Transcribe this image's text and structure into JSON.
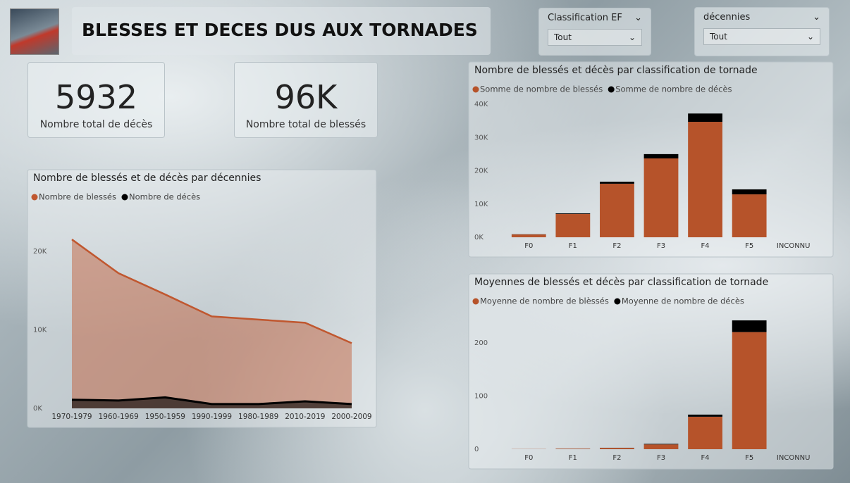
{
  "header": {
    "title": "BLESSES ET DECES DUS AUX TORNADES"
  },
  "slicers": [
    {
      "label": "Classification EF",
      "value": "Tout"
    },
    {
      "label": "décennies",
      "value": "Tout"
    }
  ],
  "cards": [
    {
      "value": 5932,
      "label": "Nombre total de décès"
    },
    {
      "value": 96000,
      "value_label": "96K",
      "label": "Nombre total de blessés"
    }
  ],
  "chart_data": [
    {
      "type": "area",
      "title": "Nombre de blessés et de décès par décennies",
      "categories": [
        "1970-1979",
        "1960-1969",
        "1950-1959",
        "1990-1999",
        "1980-1989",
        "2010-2019",
        "2000-2009"
      ],
      "series": [
        {
          "name": "Nombre de blessés",
          "color": "#c0572f",
          "values": [
            21500,
            17200,
            14500,
            11700,
            11300,
            10900,
            8300
          ]
        },
        {
          "name": "Nombre de décès",
          "color": "#000000",
          "values": [
            1100,
            1000,
            1400,
            550,
            550,
            900,
            550
          ]
        }
      ],
      "ylim": [
        0,
        25000
      ],
      "yticks": [
        {
          "value": 0,
          "label": "0K"
        },
        {
          "value": 10000,
          "label": "10K"
        },
        {
          "value": 20000,
          "label": "20K"
        }
      ]
    },
    {
      "type": "bar",
      "stacked": true,
      "title": "Nombre de blessés et décès par classification de tornade",
      "categories": [
        "F0",
        "F1",
        "F2",
        "F3",
        "F4",
        "F5",
        "INCONNU"
      ],
      "series": [
        {
          "name": "Somme de nombre de blessés",
          "color": "#b6532a",
          "values": [
            850,
            7000,
            16100,
            23700,
            34700,
            12900,
            0
          ]
        },
        {
          "name": "Somme de nombre de décès",
          "color": "#000000",
          "values": [
            50,
            200,
            600,
            1300,
            2500,
            1500,
            0
          ]
        }
      ],
      "ylim": [
        0,
        40000
      ],
      "yticks": [
        {
          "value": 0,
          "label": "0K"
        },
        {
          "value": 10000,
          "label": "10K"
        },
        {
          "value": 20000,
          "label": "20K"
        },
        {
          "value": 30000,
          "label": "30K"
        },
        {
          "value": 40000,
          "label": "40K"
        }
      ]
    },
    {
      "type": "bar",
      "stacked": true,
      "title": "Moyennes de blessés et décès par classification de tornade",
      "categories": [
        "F0",
        "F1",
        "F2",
        "F3",
        "F4",
        "F5",
        "INCONNU"
      ],
      "series": [
        {
          "name": "Moyenne de nombre de blèssés",
          "color": "#b6532a",
          "values": [
            0.3,
            1,
            2.5,
            9,
            61,
            220,
            0
          ]
        },
        {
          "name": "Moyenne de nombre de décès",
          "color": "#000000",
          "values": [
            0.02,
            0.1,
            0.2,
            1,
            4,
            22,
            0
          ]
        }
      ],
      "ylim": [
        0,
        250
      ],
      "yticks": [
        0,
        100,
        200
      ]
    }
  ]
}
